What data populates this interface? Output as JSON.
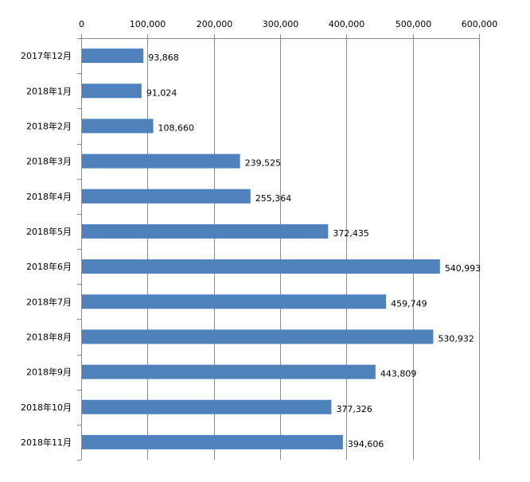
{
  "chart_data": {
    "type": "bar",
    "orientation": "horizontal",
    "categories": [
      "2017年12月",
      "2018年1月",
      "2018年2月",
      "2018年3月",
      "2018年4月",
      "2018年5月",
      "2018年6月",
      "2018年7月",
      "2018年8月",
      "2018年9月",
      "2018年10月",
      "2018年11月"
    ],
    "values": [
      93868,
      91024,
      108660,
      239525,
      255364,
      372435,
      540993,
      459749,
      530932,
      443809,
      377326,
      394606
    ],
    "data_labels": [
      "93,868",
      "91,024",
      "108,660",
      "239,525",
      "255,364",
      "372,435",
      "540,993",
      "459,749",
      "530,932",
      "443,809",
      "377,326",
      "394,606"
    ],
    "x_ticks": [
      "0",
      "100,000",
      "200,000",
      "300,000",
      "400,000",
      "500,000",
      "600,000"
    ],
    "xlim": [
      0,
      600000
    ],
    "x_axis_position": "top",
    "grid": true,
    "legend": "none",
    "title": "",
    "xlabel": "",
    "ylabel": "",
    "bar_color": "#4f81bd",
    "grid_color": "#8c8c8c"
  }
}
